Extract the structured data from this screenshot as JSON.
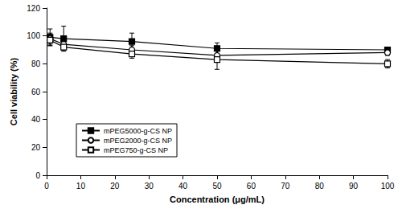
{
  "chart_data": {
    "type": "line",
    "xlabel": "Concentration (μg/mL)",
    "ylabel": "Cell viability (%)",
    "x": [
      1,
      5,
      25,
      50,
      100
    ],
    "series": [
      {
        "name": "mPEG5000-g-CS NP",
        "color": "#000000",
        "marker": "filled-square",
        "values": [
          99,
          98,
          96,
          91,
          90
        ],
        "errors": [
          6,
          9,
          6,
          4,
          2
        ]
      },
      {
        "name": "mPEG2000-g-CS NP",
        "color": "#000000",
        "marker": "open-circle",
        "values": [
          98,
          94,
          90,
          86,
          88
        ],
        "errors": [
          4,
          3,
          3,
          3,
          2
        ]
      },
      {
        "name": "mPEG750-g-CS NP",
        "color": "#000000",
        "marker": "open-square",
        "values": [
          97,
          92,
          87,
          83,
          80
        ],
        "errors": [
          4,
          2,
          3,
          7,
          3
        ]
      }
    ],
    "xlim": [
      0,
      100
    ],
    "xticks": [
      0,
      10,
      20,
      30,
      40,
      50,
      60,
      70,
      80,
      90,
      100
    ],
    "ylim": [
      0,
      120
    ],
    "yticks": [
      0,
      20,
      40,
      60,
      80,
      100,
      120
    ],
    "grid": false,
    "legend": "lower left"
  }
}
